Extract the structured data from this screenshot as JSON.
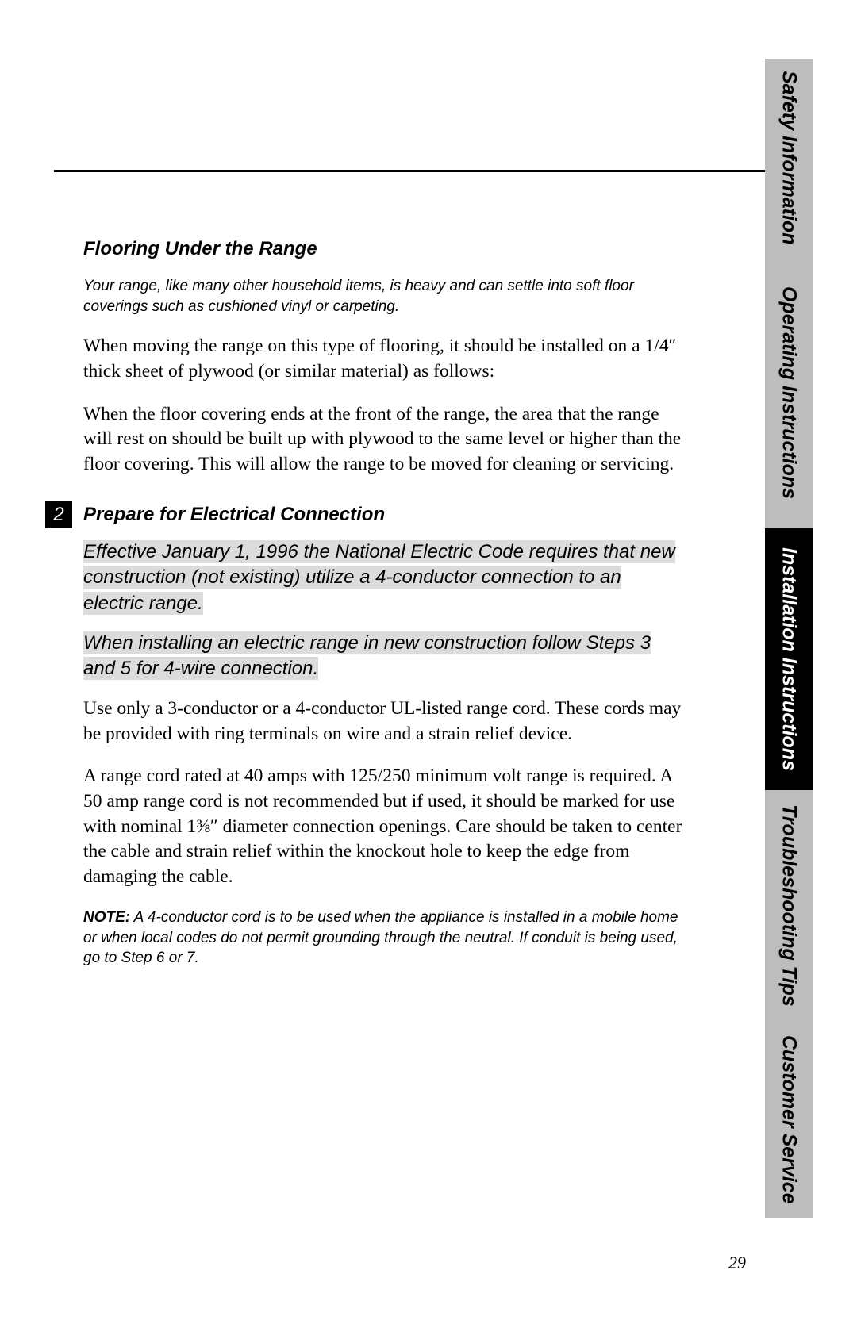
{
  "page": {
    "number": "29",
    "rule_color": "#000000",
    "background_color": "#ffffff"
  },
  "side_tabs": {
    "light_bg": "#bdbdbd",
    "dark_bg": "#000000",
    "items": [
      {
        "label": "Safety Information",
        "active": false
      },
      {
        "label": "Operating Instructions",
        "active": false
      },
      {
        "label": "Installation Instructions",
        "active": true
      },
      {
        "label": "Troubleshooting Tips",
        "active": false
      },
      {
        "label": "Customer Service",
        "active": false
      }
    ]
  },
  "section_flooring": {
    "heading": "Flooring Under the Range",
    "intro_italic": "Your range, like many other household items, is heavy and can settle into soft floor coverings such as cushioned vinyl or carpeting.",
    "para1": "When moving the range on this type of flooring, it should be installed on a 1/4″ thick sheet of plywood (or similar material) as follows:",
    "para2": "When the floor covering ends at the front of the range, the area that the range will rest on should be built up with plywood to the same level or higher than the floor covering. This will allow the range to be moved for cleaning or servicing."
  },
  "section_electrical": {
    "step_number": "2",
    "heading": "Prepare for Electrical Connection",
    "highlight1": "Effective January 1, 1996 the National Electric Code requires that new construction (not existing) utilize a 4-conductor connection to an electric range.",
    "highlight2": "When installing an electric range in new construction follow Steps 3 and 5 for 4-wire connection.",
    "para1": "Use only a 3-conductor or a 4-conductor UL-listed range cord. These cords may be provided with ring terminals on wire and a strain relief device.",
    "para2": "A range cord rated at 40 amps with 125/250 minimum volt range is required. A 50 amp range cord is not recommended but if used, it should be marked for use with nominal 1⅜″ diameter connection openings. Care should be taken to center the cable and strain relief within the knockout hole to keep the edge from damaging the cable.",
    "note_label": "NOTE:",
    "note_text": " A 4-conductor cord is to be used when the appliance is installed in a mobile home or when local codes do not permit grounding through the neutral. If conduit is being used, go to Step 6 or 7."
  }
}
